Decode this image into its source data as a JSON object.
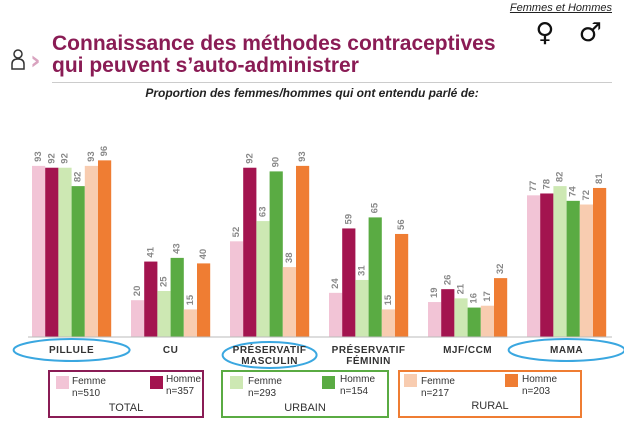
{
  "header": {
    "tag": "Femmes et Hommes",
    "gender_symbols": "♀ ♂",
    "title_line1": "Connaissance des méthodes contraceptives",
    "title_line2": "qui peuvent s’auto-administrer",
    "subtitle": "Proportion des femmes/hommes qui ont entendu parlé de:"
  },
  "chart_data": {
    "type": "bar",
    "categories": [
      "PILLULE",
      "CU",
      "PRÉSERVATIF MASCULIN",
      "PRÉSERVATIF FÉMININ",
      "MJF/CCM",
      "MAMA"
    ],
    "category_lines": [
      [
        "PILLULE"
      ],
      [
        "CU"
      ],
      [
        "PRÉSERVATIF",
        "MASCULIN"
      ],
      [
        "PRÉSERVATIF",
        "FÉMININ"
      ],
      [
        "MJF/CCM"
      ],
      [
        "MAMA"
      ]
    ],
    "highlighted_categories": [
      "PILLULE",
      "PRÉSERVATIF MASCULIN",
      "MAMA"
    ],
    "series": [
      {
        "name": "Femme",
        "group": "TOTAL",
        "n": "n=510",
        "color": "#f2c4d6",
        "values": [
          93,
          20,
          52,
          24,
          19,
          77
        ]
      },
      {
        "name": "Homme",
        "group": "TOTAL",
        "n": "n=357",
        "color": "#a3144f",
        "values": [
          92,
          41,
          92,
          59,
          26,
          78
        ]
      },
      {
        "name": "Femme",
        "group": "URBAIN",
        "n": "n=293",
        "color": "#cde8b3",
        "values": [
          92,
          25,
          63,
          31,
          21,
          82
        ]
      },
      {
        "name": "Homme",
        "group": "URBAIN",
        "n": "n=154",
        "color": "#5aab43",
        "values": [
          82,
          43,
          90,
          65,
          16,
          74
        ]
      },
      {
        "name": "Femme",
        "group": "RURAL",
        "n": "n=217",
        "color": "#f8ccb0",
        "values": [
          93,
          15,
          38,
          15,
          17,
          72
        ]
      },
      {
        "name": "Homme",
        "group": "RURAL",
        "n": "n=203",
        "color": "#ef7d33",
        "values": [
          96,
          40,
          93,
          56,
          32,
          81
        ]
      }
    ],
    "ylim": [
      0,
      100
    ],
    "grid": false
  },
  "legend": {
    "groups": [
      {
        "label": "TOTAL",
        "border": "#8a1c55"
      },
      {
        "label": "URBAIN",
        "border": "#5aab43"
      },
      {
        "label": "RURAL",
        "border": "#ef7d33"
      }
    ]
  },
  "colors": {
    "title": "#8a1c55",
    "highlight_ring": "#3aa7e0",
    "value_label": "#888888"
  }
}
